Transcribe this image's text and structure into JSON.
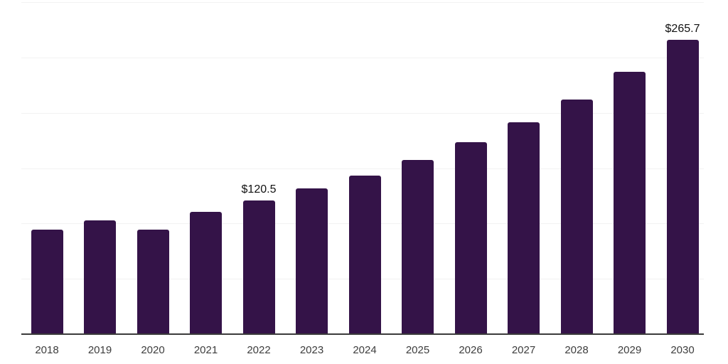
{
  "chart_data": {
    "type": "bar",
    "title": "",
    "xlabel": "",
    "ylabel": "",
    "categories": [
      "2018",
      "2019",
      "2020",
      "2021",
      "2022",
      "2023",
      "2024",
      "2025",
      "2026",
      "2027",
      "2028",
      "2029",
      "2030"
    ],
    "values": [
      94.5,
      103.0,
      94.2,
      110.8,
      120.5,
      131.5,
      143.0,
      157.6,
      173.2,
      191.4,
      212.2,
      237.0,
      265.7
    ],
    "data_labels": [
      "",
      "",
      "",
      "",
      "$120.5",
      "",
      "",
      "",
      "",
      "",
      "",
      "",
      "$265.7"
    ],
    "ylim": [
      0,
      300
    ],
    "gridline_step": 50,
    "grid": "horizontal-only",
    "legend": "none",
    "y_axis_tick_labels": "none",
    "colors": {
      "bar": "#341348",
      "axis_line": "#3b3b3b",
      "gridline": "#f2f2f2",
      "tick_label": "#3d3d3d",
      "data_label": "#111111",
      "background": "#ffffff"
    }
  }
}
